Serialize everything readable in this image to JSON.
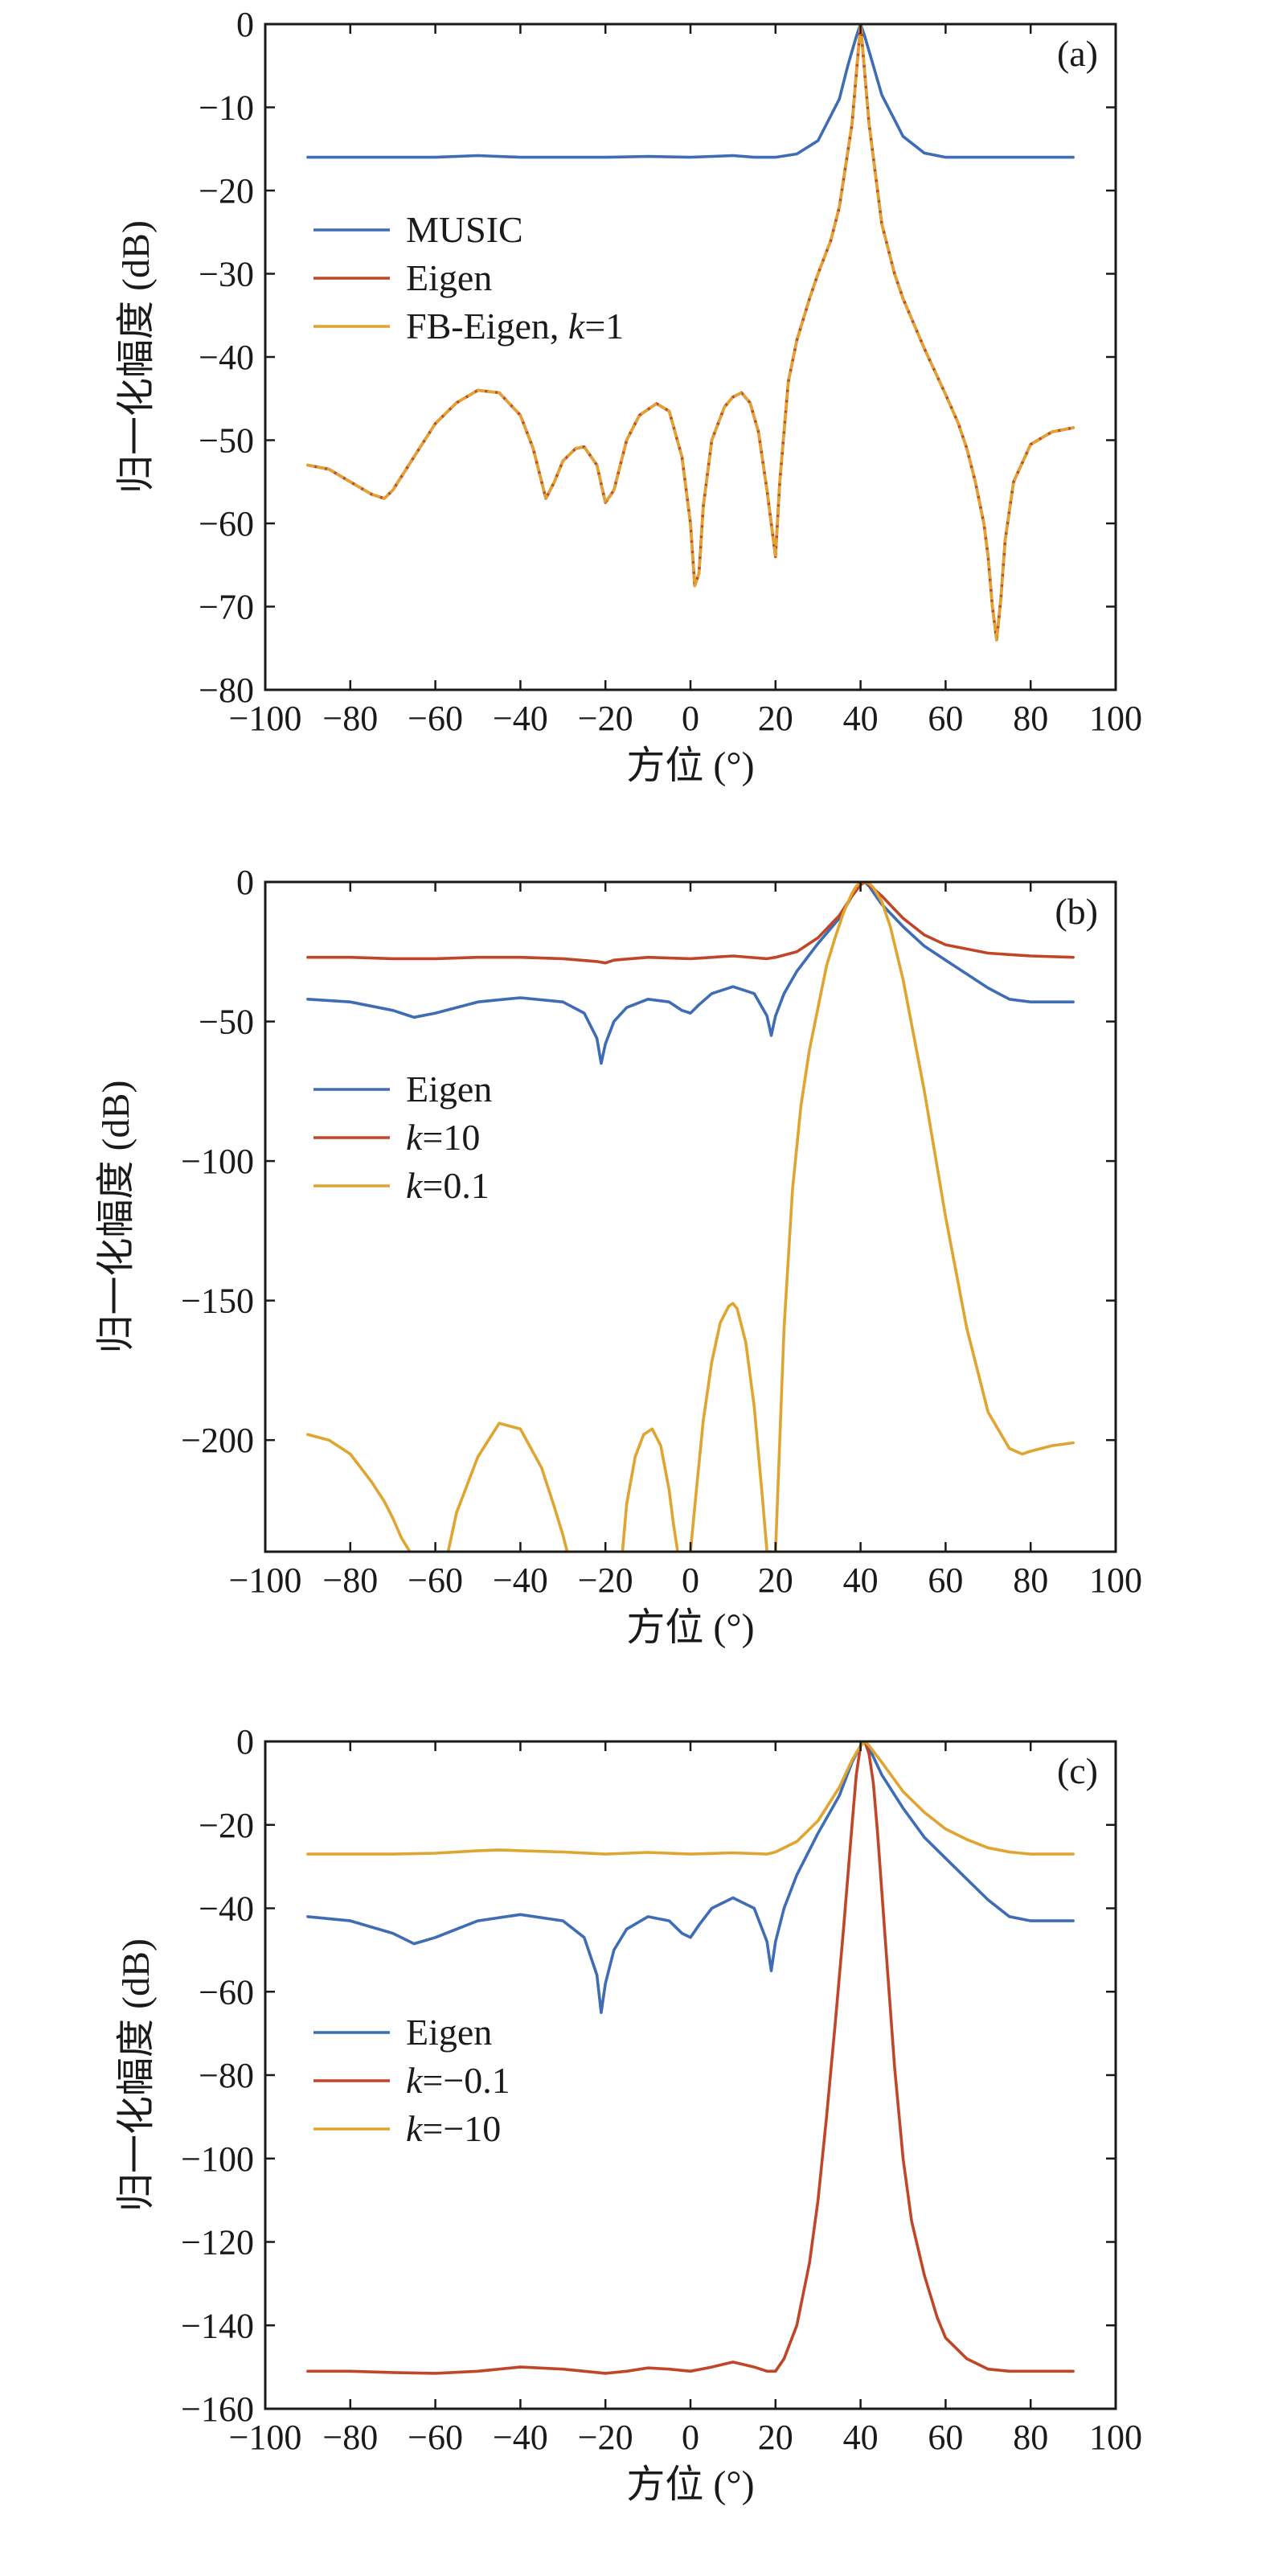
{
  "chart_data": [
    {
      "type": "line",
      "panel_label": "(a)",
      "xlabel": "方位 (°)",
      "ylabel": "归一化幅度 (dB)",
      "xlim": [
        -100,
        100
      ],
      "ylim": [
        -80,
        0
      ],
      "xticks": [
        "−100",
        "−80",
        "−60",
        "−40",
        "−20",
        "0",
        "20",
        "40",
        "60",
        "80",
        "100"
      ],
      "yticks": [
        "0",
        "−10",
        "−20",
        "−30",
        "−40",
        "−50",
        "−60",
        "−70",
        "−80"
      ],
      "grid": false,
      "legend_position": "center-left",
      "series": [
        {
          "name": "MUSIC",
          "color": "#3e6db5",
          "dashed": false,
          "x": [
            -90,
            -80,
            -70,
            -60,
            -50,
            -40,
            -30,
            -20,
            -10,
            0,
            10,
            15,
            20,
            25,
            30,
            35,
            37,
            39,
            40,
            41,
            43,
            45,
            50,
            55,
            60,
            70,
            80,
            90
          ],
          "y": [
            -16,
            -16,
            -16,
            -16,
            -15.8,
            -16,
            -16,
            -16,
            -15.9,
            -16,
            -15.8,
            -16,
            -16,
            -15.6,
            -14,
            -9,
            -5,
            -1.5,
            0,
            -1.5,
            -5,
            -8.5,
            -13.5,
            -15.5,
            -16,
            -16,
            -16,
            -16
          ]
        },
        {
          "name": "Eigen",
          "color": "#c0462a",
          "dashed": false,
          "x": [
            -90,
            -85,
            -80,
            -75,
            -72,
            -70,
            -65,
            -60,
            -55,
            -50,
            -45,
            -40,
            -37,
            -34,
            -32,
            -30,
            -27,
            -25,
            -22,
            -20,
            -18,
            -15,
            -12,
            -8,
            -5,
            -2,
            0,
            1,
            2,
            3,
            5,
            8,
            10,
            12,
            14,
            16,
            18,
            19,
            20,
            21,
            23,
            25,
            28,
            30,
            33,
            35,
            38,
            40,
            42,
            45,
            48,
            50,
            55,
            60,
            63,
            65,
            67,
            69,
            70,
            71,
            72,
            73,
            74,
            76,
            80,
            85,
            90
          ],
          "y": [
            -53,
            -53.5,
            -55,
            -56.5,
            -57,
            -56,
            -52,
            -48,
            -45.5,
            -44,
            -44.3,
            -47,
            -51,
            -57,
            -55,
            -52.5,
            -51,
            -50.8,
            -53,
            -57.5,
            -56,
            -50,
            -47,
            -45.6,
            -46.5,
            -52,
            -60,
            -67.5,
            -66,
            -58,
            -50,
            -46,
            -44.8,
            -44.3,
            -45.5,
            -49,
            -56,
            -60,
            -64,
            -55,
            -43,
            -38,
            -33,
            -30,
            -26,
            -22,
            -12,
            0,
            -12,
            -24,
            -30,
            -33,
            -39,
            -44.5,
            -48,
            -51,
            -55,
            -60,
            -64,
            -70,
            -74,
            -69,
            -62,
            -55,
            -50.5,
            -49,
            -48.5
          ]
        },
        {
          "name": "FB-Eigen, k=1",
          "color": "#e0a430",
          "dashed": true,
          "x": [
            -90,
            -85,
            -80,
            -75,
            -72,
            -70,
            -65,
            -60,
            -55,
            -50,
            -45,
            -40,
            -37,
            -34,
            -32,
            -30,
            -27,
            -25,
            -22,
            -20,
            -18,
            -15,
            -12,
            -8,
            -5,
            -2,
            0,
            1,
            2,
            3,
            5,
            8,
            10,
            12,
            14,
            16,
            18,
            19,
            20,
            21,
            23,
            25,
            28,
            30,
            33,
            35,
            38,
            40,
            42,
            45,
            48,
            50,
            55,
            60,
            63,
            65,
            67,
            69,
            70,
            71,
            72,
            73,
            74,
            76,
            80,
            85,
            90
          ],
          "y": [
            -53,
            -53.5,
            -55,
            -56.5,
            -57,
            -56,
            -52,
            -48,
            -45.5,
            -44,
            -44.3,
            -47,
            -51,
            -57,
            -55,
            -52.5,
            -51,
            -50.8,
            -53,
            -57.5,
            -56,
            -50,
            -47,
            -45.6,
            -46.5,
            -52,
            -60,
            -67.5,
            -66,
            -58,
            -50,
            -46,
            -44.8,
            -44.3,
            -45.5,
            -49,
            -56,
            -60,
            -64,
            -55,
            -43,
            -38,
            -33,
            -30,
            -26,
            -22,
            -12,
            0,
            -12,
            -24,
            -30,
            -33,
            -39,
            -44.5,
            -48,
            -51,
            -55,
            -60,
            -64,
            -70,
            -74,
            -69,
            -62,
            -55,
            -50.5,
            -49,
            -48.5
          ]
        }
      ]
    },
    {
      "type": "line",
      "panel_label": "(b)",
      "xlabel": "方位 (°)",
      "ylabel": "归一化幅度 (dB)",
      "xlim": [
        -100,
        100
      ],
      "ylim": [
        -240,
        0
      ],
      "xticks": [
        "−100",
        "−80",
        "−60",
        "−40",
        "−20",
        "0",
        "20",
        "40",
        "60",
        "80",
        "100"
      ],
      "yticks": [
        "0",
        "−50",
        "−100",
        "−150",
        "−200"
      ],
      "ytick_values": [
        0,
        -50,
        -100,
        -150,
        -200
      ],
      "grid": false,
      "legend_position": "center-left",
      "series": [
        {
          "name": "Eigen",
          "color": "#3e6db5",
          "x": [
            -90,
            -80,
            -70,
            -65,
            -60,
            -50,
            -40,
            -30,
            -25,
            -22,
            -21,
            -20,
            -18,
            -15,
            -10,
            -5,
            -2,
            0,
            2,
            5,
            10,
            15,
            18,
            19,
            20,
            22,
            25,
            30,
            35,
            38,
            40,
            41,
            42,
            45,
            50,
            55,
            60,
            65,
            70,
            75,
            80,
            90
          ],
          "y": [
            -42,
            -43,
            -46,
            -48.5,
            -47,
            -43,
            -41.5,
            -43,
            -47,
            -56,
            -65,
            -58,
            -50,
            -45,
            -42,
            -43,
            -46,
            -47,
            -44,
            -40,
            -37.5,
            -40,
            -48,
            -55,
            -48,
            -40,
            -32,
            -22,
            -13,
            -5,
            -1,
            0,
            -1.5,
            -8,
            -16,
            -23,
            -28,
            -33,
            -38,
            -42,
            -43,
            -43
          ]
        },
        {
          "name": "k=10",
          "color": "#c0462a",
          "x": [
            -90,
            -80,
            -70,
            -60,
            -50,
            -40,
            -30,
            -22,
            -20,
            -18,
            -10,
            0,
            10,
            18,
            20,
            25,
            30,
            35,
            38,
            40,
            41,
            42,
            45,
            50,
            55,
            60,
            70,
            80,
            90
          ],
          "y": [
            -27,
            -27,
            -27.5,
            -27.5,
            -27,
            -27,
            -27.5,
            -28.5,
            -29,
            -28,
            -27,
            -27.5,
            -26.5,
            -27.5,
            -27,
            -25,
            -20,
            -12,
            -5,
            -1,
            0,
            -1,
            -5,
            -13,
            -19,
            -22.5,
            -25.5,
            -26.5,
            -27
          ]
        },
        {
          "name": "k=0.1",
          "color": "#e0a430",
          "x": [
            -90,
            -85,
            -80,
            -75,
            -72,
            -70,
            -68,
            -66,
            null,
            -57,
            -55,
            -50,
            -45,
            -40,
            -35,
            -32,
            -30,
            -29,
            null,
            -16,
            -15,
            -13,
            -11,
            -9,
            -7,
            -5,
            -4,
            -3,
            null,
            0,
            1,
            3,
            5,
            7,
            9,
            10,
            11,
            13,
            15,
            17,
            18,
            19,
            null,
            20,
            21,
            22,
            24,
            26,
            28,
            30,
            32,
            34,
            36,
            38,
            39,
            40,
            41,
            42,
            43,
            45,
            47,
            50,
            55,
            60,
            65,
            70,
            75,
            78,
            80,
            85,
            90
          ],
          "y": [
            -198,
            -200,
            -205,
            -215,
            -222,
            -228,
            -235,
            -240,
            null,
            -240,
            -226,
            -206,
            -194,
            -196,
            -210,
            -224,
            -234,
            -240,
            null,
            -240,
            -223,
            -206,
            -198,
            -196,
            -202,
            -218,
            -230,
            -240,
            null,
            -240,
            -224,
            -193,
            -172,
            -158,
            -152,
            -151,
            -153,
            -165,
            -188,
            -222,
            -240,
            -240,
            null,
            -240,
            -200,
            -160,
            -110,
            -80,
            -60,
            -45,
            -30,
            -20,
            -11,
            -4,
            -1.5,
            -0.3,
            0,
            -0.5,
            -2,
            -7,
            -16,
            -35,
            -75,
            -120,
            -160,
            -190,
            -203,
            -205,
            -204,
            -202,
            -201
          ]
        }
      ]
    },
    {
      "type": "line",
      "panel_label": "(c)",
      "xlabel": "方位 (°)",
      "ylabel": "归一化幅度 (dB)",
      "xlim": [
        -100,
        100
      ],
      "ylim": [
        -160,
        0
      ],
      "xticks": [
        "−100",
        "−80",
        "−60",
        "−40",
        "−20",
        "0",
        "20",
        "40",
        "60",
        "80",
        "100"
      ],
      "yticks": [
        "0",
        "−20",
        "−40",
        "−60",
        "−80",
        "−100",
        "−120",
        "−140",
        "−160"
      ],
      "grid": false,
      "legend_position": "center-left",
      "series": [
        {
          "name": "Eigen",
          "color": "#3e6db5",
          "x": [
            -90,
            -80,
            -70,
            -65,
            -60,
            -50,
            -40,
            -30,
            -25,
            -22,
            -21,
            -20,
            -18,
            -15,
            -10,
            -5,
            -2,
            0,
            2,
            5,
            10,
            15,
            18,
            19,
            20,
            22,
            25,
            30,
            35,
            38,
            40,
            41,
            42,
            45,
            50,
            55,
            60,
            65,
            70,
            75,
            80,
            90
          ],
          "y": [
            -42,
            -43,
            -46,
            -48.5,
            -47,
            -43,
            -41.5,
            -43,
            -47,
            -56,
            -65,
            -58,
            -50,
            -45,
            -42,
            -43,
            -46,
            -47,
            -44,
            -40,
            -37.5,
            -40,
            -48,
            -55,
            -48,
            -40,
            -32,
            -22,
            -13,
            -5,
            -1,
            0,
            -1.5,
            -8,
            -16,
            -23,
            -28,
            -33,
            -38,
            -42,
            -43,
            -43
          ]
        },
        {
          "name": "k=−0.1",
          "color": "#c0462a",
          "x": [
            -90,
            -80,
            -70,
            -60,
            -50,
            -40,
            -30,
            -20,
            -15,
            -10,
            -5,
            0,
            5,
            10,
            15,
            18,
            20,
            22,
            25,
            28,
            30,
            32,
            34,
            36,
            38,
            39,
            40,
            41,
            42,
            43,
            44,
            46,
            48,
            50,
            52,
            55,
            58,
            60,
            65,
            70,
            75,
            80,
            90
          ],
          "y": [
            -151,
            -151,
            -151.3,
            -151.5,
            -151,
            -150,
            -150.5,
            -151.5,
            -151,
            -150.2,
            -150.5,
            -151,
            -150,
            -148.8,
            -150,
            -151,
            -151,
            -148,
            -140,
            -125,
            -110,
            -90,
            -68,
            -45,
            -20,
            -8,
            -1,
            0,
            -3,
            -10,
            -22,
            -50,
            -78,
            -100,
            -115,
            -128,
            -138,
            -143,
            -148,
            -150.5,
            -151,
            -151,
            -151
          ]
        },
        {
          "name": "k=−10",
          "color": "#e0a430",
          "x": [
            -90,
            -80,
            -70,
            -60,
            -50,
            -45,
            -40,
            -30,
            -20,
            -10,
            0,
            10,
            18,
            20,
            25,
            30,
            35,
            38,
            40,
            41,
            42,
            45,
            50,
            55,
            60,
            65,
            70,
            75,
            80,
            90
          ],
          "y": [
            -27,
            -27,
            -27,
            -26.8,
            -26.2,
            -26,
            -26.2,
            -26.5,
            -27,
            -26.6,
            -27,
            -26.7,
            -27,
            -26.5,
            -24,
            -19,
            -11,
            -4.5,
            -1,
            0,
            -1,
            -5,
            -12,
            -17,
            -21,
            -23.5,
            -25.5,
            -26.5,
            -27,
            -27
          ]
        }
      ]
    }
  ]
}
